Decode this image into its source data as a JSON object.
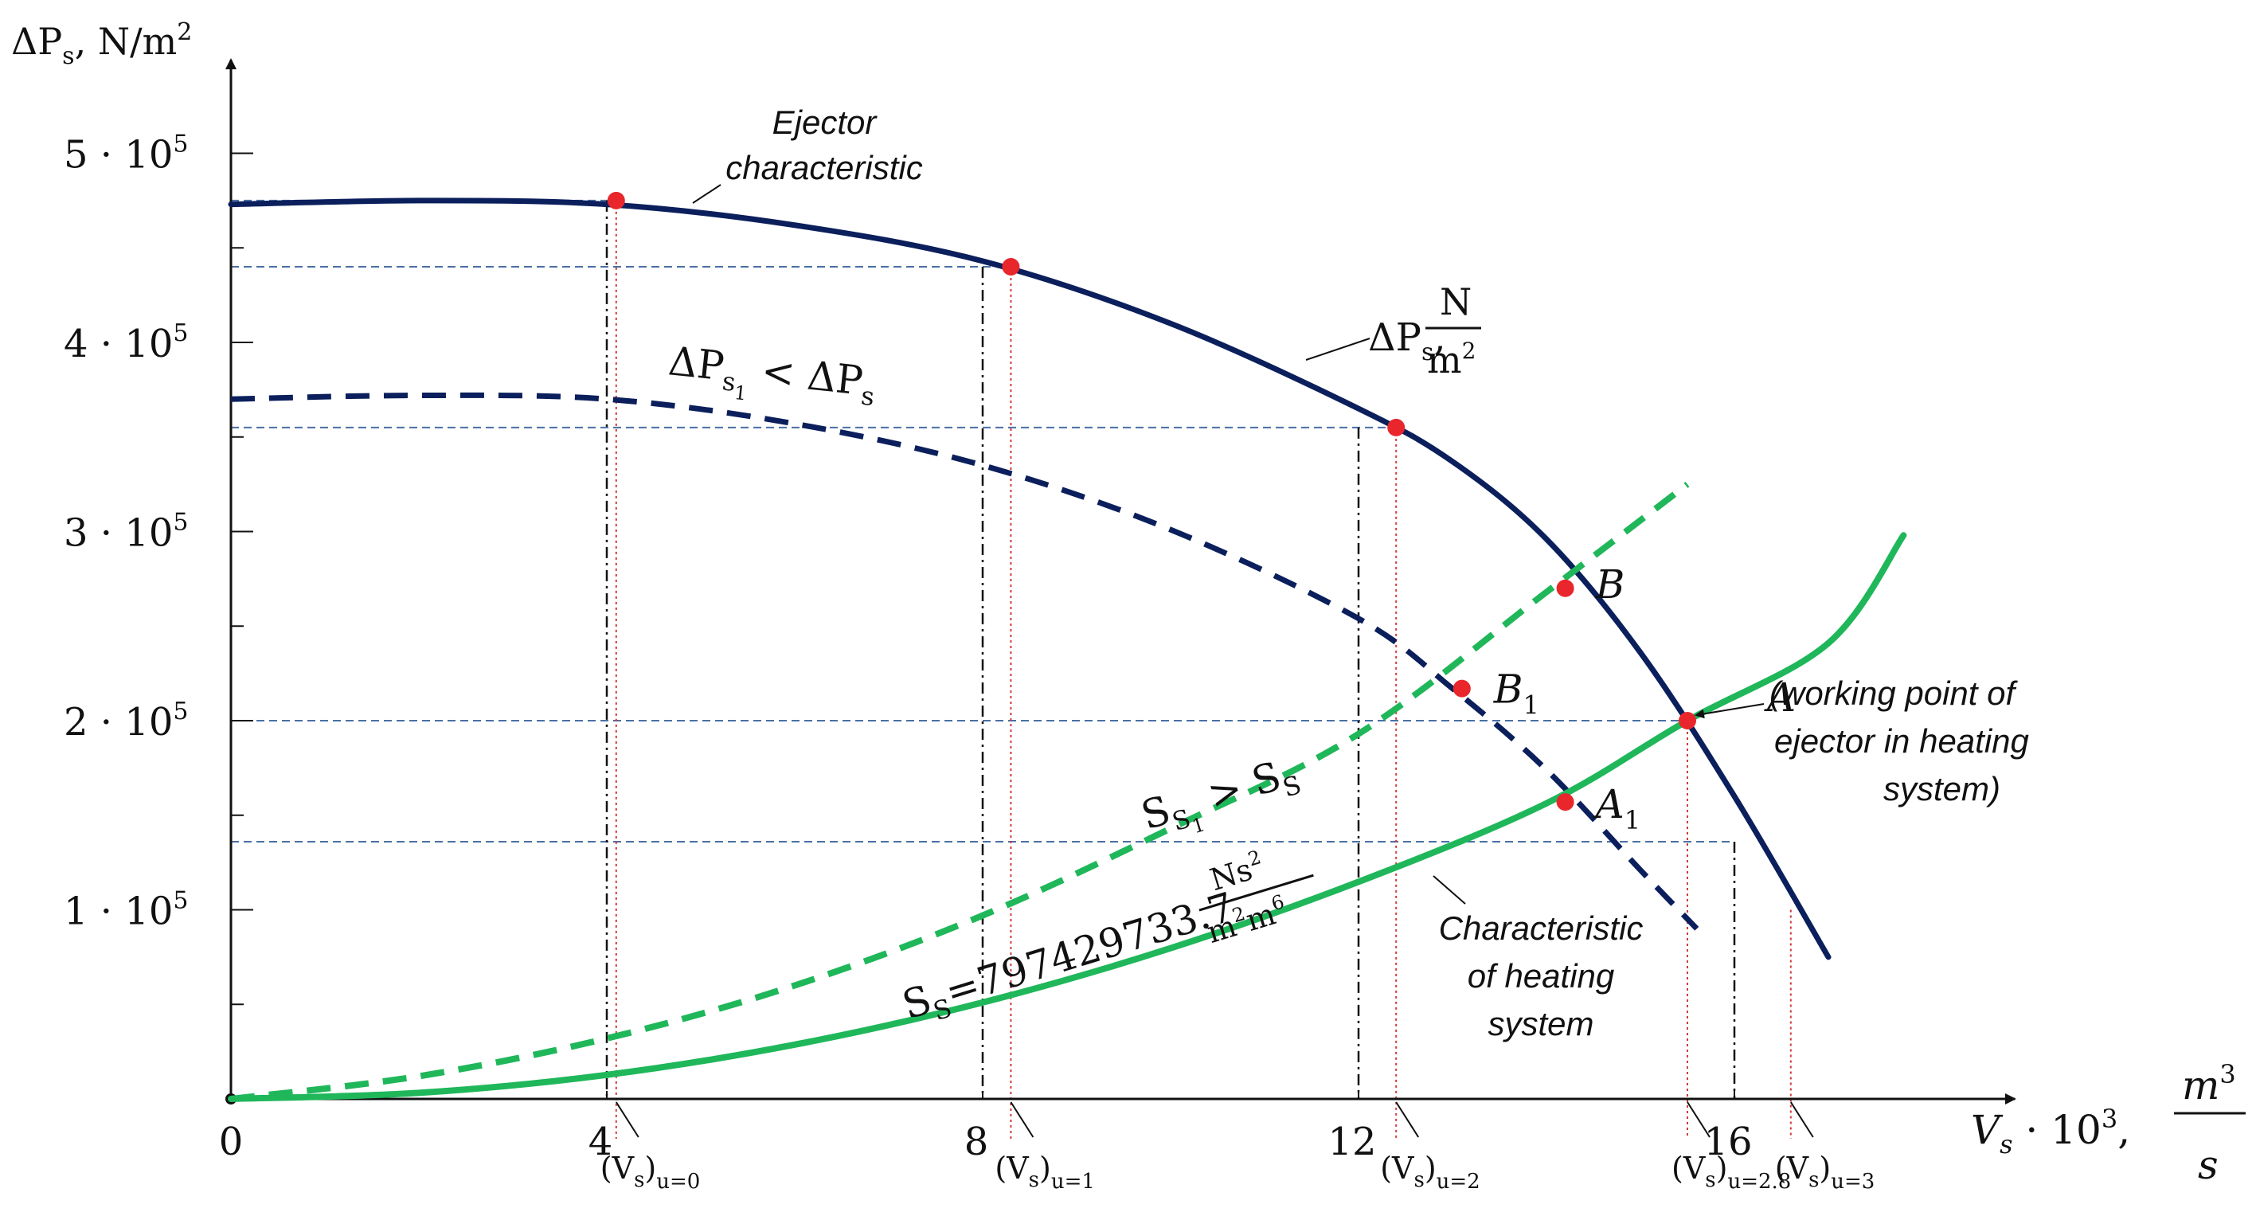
{
  "chart_data": {
    "type": "line",
    "title": "",
    "ylabel": "ΔP",
    "ylabel_sub": "s",
    "ylabel_units": ", N/m",
    "ylabel_exp": "2",
    "xlabel": "V",
    "xlabel_sub": "s",
    "xlabel_mid": " · 10",
    "xlabel_exp": "3",
    "xlabel_comma": ",",
    "xlabel_frac_num": "m",
    "xlabel_frac_num_exp": "3",
    "xlabel_frac_den": "s",
    "xlim": [
      0,
      19
    ],
    "ylim": [
      0,
      550000
    ],
    "x_ticks": [
      {
        "value": 0,
        "label": "0"
      },
      {
        "value": 4,
        "label": "4"
      },
      {
        "value": 8,
        "label": "8"
      },
      {
        "value": 12,
        "label": "12"
      },
      {
        "value": 16,
        "label": "16"
      }
    ],
    "y_ticks": [
      {
        "value": 100000,
        "label_base": "1 · 10",
        "label_exp": "5"
      },
      {
        "value": 200000,
        "label_base": "2 · 10",
        "label_exp": "5"
      },
      {
        "value": 300000,
        "label_base": "3 · 10",
        "label_exp": "5"
      },
      {
        "value": 400000,
        "label_base": "4 · 10",
        "label_exp": "5"
      },
      {
        "value": 500000,
        "label_base": "5 · 10",
        "label_exp": "5"
      }
    ],
    "y_minor_step": 50000,
    "colors": {
      "ejector": "#0b1f5c",
      "heating": "#1fb75a",
      "points": "#e8262b",
      "helper_blue": "#4a6fa5",
      "drop_red": "#d23a3a",
      "drop_black": "#111111",
      "axis": "#111111"
    },
    "series": [
      {
        "name": "Ejector characteristic",
        "style": "solid",
        "color_key": "ejector",
        "x": [
          0,
          2,
          4,
          6,
          8,
          10,
          12,
          13,
          14,
          15,
          16,
          17
        ],
        "y": [
          473000,
          475000,
          473000,
          462000,
          443000,
          410000,
          365000,
          337000,
          296000,
          236000,
          160000,
          75000
        ]
      },
      {
        "name": "Ejector characteristic (ΔPs1 < ΔPs)",
        "style": "dashed",
        "color_key": "ejector",
        "x": [
          0,
          2,
          4,
          6,
          8,
          10,
          12,
          13,
          14,
          15,
          15.6
        ],
        "y": [
          370000,
          372000,
          370000,
          357000,
          335000,
          301000,
          254000,
          217000,
          174000,
          121000,
          90000
        ]
      },
      {
        "name": "Characteristic of heating system (Ss)",
        "style": "solid",
        "color_key": "heating",
        "x": [
          0,
          2,
          4,
          6,
          8,
          10,
          12,
          14,
          15.5,
          17,
          17.8
        ],
        "y": [
          0,
          3200,
          12700,
          28700,
          51000,
          79700,
          114800,
          156300,
          200000,
          241000,
          298000
        ]
      },
      {
        "name": "Characteristic of heating system (Ss1 > Ss)",
        "style": "dashed",
        "color_key": "heating",
        "x": [
          0,
          2,
          4,
          6,
          8,
          10,
          12,
          14,
          15.5
        ],
        "y": [
          0,
          12000,
          32000,
          60000,
          97000,
          143000,
          193000,
          268000,
          325000
        ]
      }
    ],
    "points": [
      {
        "name": "Vs-u0-point",
        "x": 4.1,
        "y": 475000,
        "label": ""
      },
      {
        "name": "Vs-u1-point",
        "x": 8.3,
        "y": 440000,
        "label": ""
      },
      {
        "name": "Vs-u2-point",
        "x": 12.4,
        "y": 355000,
        "label": ""
      },
      {
        "name": "point-B",
        "x": 14.2,
        "y": 270000,
        "label": "B",
        "sub": ""
      },
      {
        "name": "point-B1",
        "x": 13.1,
        "y": 217000,
        "label": "B",
        "sub": "1"
      },
      {
        "name": "point-A",
        "x": 15.5,
        "y": 200000,
        "label": "A",
        "sub": ""
      },
      {
        "name": "point-A1",
        "x": 14.2,
        "y": 157000,
        "label": "A",
        "sub": "1"
      }
    ],
    "h_guides": [
      475000,
      440000,
      355000,
      200000,
      136000
    ],
    "red_drops": [
      {
        "x": 4.1,
        "y": 475000
      },
      {
        "x": 8.3,
        "y": 440000
      },
      {
        "x": 12.4,
        "y": 355000
      },
      {
        "x": 15.5,
        "y": 200000
      },
      {
        "x": 16.6,
        "y": 100000
      }
    ],
    "black_drops": [
      {
        "x": 4,
        "y": 475000
      },
      {
        "x": 8,
        "y": 440000
      },
      {
        "x": 12,
        "y": 355000
      },
      {
        "x": 16,
        "y": 136000
      }
    ],
    "bottom_labels": [
      {
        "x": 4.1,
        "base": "(V",
        "sub": "s",
        "close": ")",
        "u": "u=0"
      },
      {
        "x": 8.3,
        "base": "(V",
        "sub": "s",
        "close": ")",
        "u": "u=1"
      },
      {
        "x": 12.4,
        "base": "(V",
        "sub": "s",
        "close": ")",
        "u": "u=2"
      },
      {
        "x": 15.5,
        "base": "(V",
        "sub": "s",
        "close": ")",
        "u": "u=2.8"
      },
      {
        "x": 16.6,
        "base": "(V",
        "sub": "s",
        "close": ")",
        "u": "u=3"
      }
    ],
    "annotations": {
      "ejector_line1": "Ejector",
      "ejector_line2": "characteristic",
      "dps_label": "ΔP",
      "dps_sub": "s",
      "dps_comma": ",",
      "dps_frac_num": "N",
      "dps_frac_den": "m",
      "dps_frac_den_exp": "2",
      "dps1_lhs": "ΔP",
      "dps1_sub": "s",
      "dps1_subsub": "1",
      "dps1_op": " < ",
      "dps1_rhs": "ΔP",
      "dps1_rhs_sub": "s",
      "ss1_lhs": "S",
      "ss1_sub": "S",
      "ss1_subsub": "1",
      "ss1_op": " > ",
      "ss1_rhs": "S",
      "ss1_rhs_sub": "S",
      "ss_lhs": "S",
      "ss_sub": "S",
      "ss_value": "=797429733.7",
      "ss_frac_num": "Ns",
      "ss_frac_num_exp": "2",
      "ss_frac_den": "m",
      "ss_frac_den_exp1": "2",
      "ss_frac_den_m": "m",
      "ss_frac_den_exp2": "6",
      "working_point_line1": "(working point of",
      "working_point_line2": "ejector in heating",
      "working_point_line3": "system)",
      "heating_line1": "Characteristic",
      "heating_line2": "of heating",
      "heating_line3": "system"
    }
  }
}
